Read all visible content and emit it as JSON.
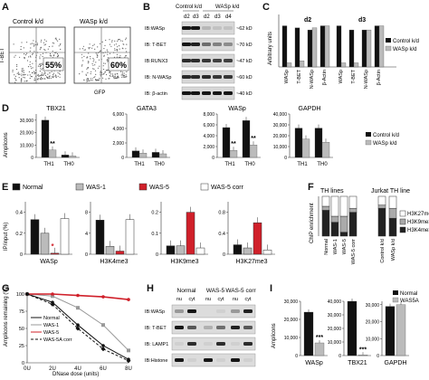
{
  "panels": {
    "A": {
      "letter": "A",
      "plots": [
        {
          "label": "Control k/d",
          "percent": "55%"
        },
        {
          "label": "WASp k/d",
          "percent": "60%"
        }
      ],
      "xlabel": "GFP",
      "ylabel": "T-BET"
    },
    "B": {
      "letter": "B",
      "group_labels": [
        "Control k/d",
        "WASp k/d"
      ],
      "lanes": [
        "d2",
        "d3",
        "d2",
        "d3",
        "d4"
      ],
      "rows": [
        {
          "label": "IB:WASp",
          "kda": "~62 kD"
        },
        {
          "label": "IB: T-BET",
          "kda": "~70 kD"
        },
        {
          "label": "IB:RUNX3",
          "kda": "~47 kD"
        },
        {
          "label": "IB: N-WASp",
          "kda": "~60 kD"
        },
        {
          "label": "IB: β-actin",
          "kda": "~40 kD"
        }
      ]
    },
    "C": {
      "letter": "C",
      "ylabel": "Arbitrary units",
      "groups": [
        "d2",
        "d3"
      ],
      "categories": [
        "WASp",
        "T-BET",
        "N-WASp",
        "β-Actin"
      ],
      "legend": [
        "Control k/d",
        "WASp k/d"
      ]
    },
    "D": {
      "letter": "D",
      "ylabel": "Amplicons",
      "subplots": [
        {
          "title": "TBX21",
          "yticks": [
            "0",
            "10,000",
            "20,000",
            "30,000"
          ]
        },
        {
          "title": "GATA3",
          "yticks": [
            "0",
            "2,000",
            "4,000",
            "6,000"
          ]
        },
        {
          "title": "WASp",
          "yticks": [
            "0",
            "2,000",
            "4,000",
            "6,000",
            "8,000"
          ]
        },
        {
          "title": "GAPDH",
          "yticks": [
            "0",
            "10,000",
            "20,000",
            "30,000",
            "40,000"
          ]
        }
      ],
      "xticks": [
        "TH1",
        "TH0"
      ],
      "sig": "**",
      "legend": [
        "Control k/d",
        "WASp k/d"
      ]
    },
    "E": {
      "letter": "E",
      "ylabel": "IP/input (%)",
      "legend": [
        "Normal",
        "WAS-1",
        "WAS-5",
        "WAS-5 corr"
      ],
      "subplots": [
        {
          "title": "WASp",
          "yticks": [
            "0",
            "0.2",
            "0.4"
          ]
        },
        {
          "title": "H3K4me3",
          "yticks": [
            "0",
            "4",
            "8"
          ]
        },
        {
          "title": "H3K9me3",
          "yticks": [
            "0",
            "0.1",
            "0.2"
          ]
        },
        {
          "title": "H3K27me3",
          "yticks": [
            "0",
            "0.4",
            "0.8"
          ]
        }
      ],
      "sig": "*"
    },
    "F": {
      "letter": "F",
      "ylabel": "ChIP enrichment",
      "title1": "TH lines",
      "title2": "Jurkat TH line",
      "bars1": [
        "Normal",
        "WAS-1",
        "WAS-5",
        "WAS-5 corr"
      ],
      "bars2": [
        "Control k/d",
        "WASp k/d"
      ],
      "legend": [
        "H3K27me3",
        "H3K9me3",
        "H3K4me3"
      ]
    },
    "G": {
      "letter": "G",
      "ylabel": "Amplicons remaining (%)",
      "xlabel": "DNase dose (units)",
      "xticks": [
        "0U",
        "2U",
        "4U",
        "6U",
        "8U"
      ],
      "yticks": [
        "0",
        "25",
        "50",
        "75",
        "100"
      ],
      "legend": [
        "Normal",
        "WAS-1",
        "WAS-5",
        "WAS-5A corr"
      ]
    },
    "H": {
      "letter": "H",
      "groups": [
        "Normal",
        "WAS-5",
        "WAS-5 corr"
      ],
      "lanes": [
        "nu",
        "cyt",
        "nu",
        "cyt",
        "nu",
        "cyt"
      ],
      "rows": [
        "IB:WASp",
        "IB: T-BET",
        "IB: LAMP1",
        "IB:Histone"
      ]
    },
    "I": {
      "letter": "I",
      "ylabel": "Amplicons",
      "subplots": [
        {
          "xlabel": "WASp",
          "yticks": [
            "0",
            "10,000",
            "20,000",
            "30,000"
          ]
        },
        {
          "xlabel": "TBX21",
          "yticks": [
            "0",
            "10,000",
            "20,000",
            "30,000",
            "40,000"
          ]
        },
        {
          "xlabel": "GAPDH",
          "yticks": [
            "0",
            "10,000",
            "20,000",
            "30,000"
          ]
        }
      ],
      "sig": "***",
      "legend": [
        "Normal",
        "WAS5A"
      ]
    }
  },
  "chart_data": [
    {
      "panel": "C",
      "type": "bar",
      "categories": [
        "WASp",
        "T-BET",
        "N-WASp",
        "β-Actin"
      ],
      "series": [
        {
          "name": "Control k/d",
          "group": "d2",
          "values": [
            1.0,
            0.95,
            0.9,
            1.0
          ]
        },
        {
          "name": "WASp k/d",
          "group": "d2",
          "values": [
            0.1,
            0.15,
            0.95,
            1.0
          ]
        },
        {
          "name": "Control k/d",
          "group": "d3",
          "values": [
            1.0,
            0.9,
            0.9,
            1.0
          ]
        },
        {
          "name": "WASp k/d",
          "group": "d3",
          "values": [
            0.1,
            0.1,
            0.9,
            1.0
          ]
        }
      ]
    },
    {
      "panel": "D",
      "type": "bar",
      "subplot": "TBX21",
      "categories": [
        "TH1",
        "TH0"
      ],
      "series": [
        {
          "name": "Control k/d",
          "values": [
            30000,
            2000
          ]
        },
        {
          "name": "WASp k/d",
          "values": [
            6000,
            1200
          ]
        }
      ],
      "ylim": [
        0,
        35000
      ]
    },
    {
      "panel": "D",
      "type": "bar",
      "subplot": "GATA3",
      "categories": [
        "TH1",
        "TH0"
      ],
      "series": [
        {
          "name": "Control k/d",
          "values": [
            900,
            700
          ]
        },
        {
          "name": "WASp k/d",
          "values": [
            600,
            500
          ]
        }
      ],
      "ylim": [
        0,
        6000
      ]
    },
    {
      "panel": "D",
      "type": "bar",
      "subplot": "WASp",
      "categories": [
        "TH1",
        "TH0"
      ],
      "series": [
        {
          "name": "Control k/d",
          "values": [
            5500,
            6800
          ]
        },
        {
          "name": "WASp k/d",
          "values": [
            1300,
            2300
          ]
        }
      ],
      "ylim": [
        0,
        8000
      ]
    },
    {
      "panel": "D",
      "type": "bar",
      "subplot": "GAPDH",
      "categories": [
        "TH1",
        "TH0"
      ],
      "series": [
        {
          "name": "Control k/d",
          "values": [
            27000,
            27000
          ]
        },
        {
          "name": "WASp k/d",
          "values": [
            17000,
            14000
          ]
        }
      ],
      "ylim": [
        0,
        40000
      ]
    },
    {
      "panel": "E",
      "type": "bar",
      "subplot": "WASp",
      "series": [
        {
          "name": "Normal",
          "values": [
            0.33
          ]
        },
        {
          "name": "WAS-1",
          "values": [
            0.2
          ]
        },
        {
          "name": "WAS-5",
          "values": [
            0.01
          ]
        },
        {
          "name": "WAS-5 corr",
          "values": [
            0.34
          ]
        }
      ],
      "ylim": [
        0,
        0.5
      ]
    },
    {
      "panel": "E",
      "type": "bar",
      "subplot": "H3K4me3",
      "series": [
        {
          "name": "Normal",
          "values": [
            6.5
          ]
        },
        {
          "name": "WAS-1",
          "values": [
            1.5
          ]
        },
        {
          "name": "WAS-5",
          "values": [
            0.6
          ]
        },
        {
          "name": "WAS-5 corr",
          "values": [
            6.6
          ]
        }
      ],
      "ylim": [
        0,
        10
      ]
    },
    {
      "panel": "E",
      "type": "bar",
      "subplot": "H3K9me3",
      "series": [
        {
          "name": "Normal",
          "values": [
            0.04
          ]
        },
        {
          "name": "WAS-1",
          "values": [
            0.04
          ]
        },
        {
          "name": "WAS-5",
          "values": [
            0.2
          ]
        },
        {
          "name": "WAS-5 corr",
          "values": [
            0.03
          ]
        }
      ],
      "ylim": [
        0,
        0.25
      ]
    },
    {
      "panel": "E",
      "type": "bar",
      "subplot": "H3K27me3",
      "series": [
        {
          "name": "Normal",
          "values": [
            0.18
          ]
        },
        {
          "name": "WAS-1",
          "values": [
            0.12
          ]
        },
        {
          "name": "WAS-5",
          "values": [
            0.6
          ]
        },
        {
          "name": "WAS-5 corr",
          "values": [
            0.08
          ]
        }
      ],
      "ylim": [
        0,
        1.0
      ]
    },
    {
      "panel": "F",
      "type": "bar",
      "stacked": true,
      "categories": [
        "Normal",
        "WAS-1",
        "WAS-5",
        "WAS-5 corr",
        "Control k/d",
        "WASp k/d"
      ],
      "series": [
        {
          "name": "H3K4me3",
          "values": [
            0.65,
            0.35,
            0.1,
            0.6,
            0.7,
            0.45
          ]
        },
        {
          "name": "H3K9me3",
          "values": [
            0.1,
            0.15,
            0.4,
            0.1,
            0.08,
            0.25
          ]
        },
        {
          "name": "H3K27me3",
          "values": [
            0.25,
            0.5,
            0.5,
            0.3,
            0.22,
            0.3
          ]
        }
      ],
      "ylim": [
        0,
        1
      ]
    },
    {
      "panel": "G",
      "type": "line",
      "x": [
        0,
        2,
        4,
        6,
        8
      ],
      "series": [
        {
          "name": "Normal",
          "values": [
            100,
            88,
            55,
            25,
            5
          ]
        },
        {
          "name": "WAS-1",
          "values": [
            100,
            97,
            80,
            55,
            18
          ]
        },
        {
          "name": "WAS-5",
          "values": [
            100,
            100,
            98,
            96,
            92
          ]
        },
        {
          "name": "WAS-5A corr",
          "values": [
            100,
            85,
            50,
            20,
            3
          ]
        }
      ],
      "ylim": [
        0,
        100
      ]
    },
    {
      "panel": "I",
      "type": "bar",
      "subplot": "WASp",
      "series": [
        {
          "name": "Normal",
          "values": [
            24000
          ]
        },
        {
          "name": "WAS5A",
          "values": [
            7000
          ]
        }
      ],
      "ylim": [
        0,
        30000
      ]
    },
    {
      "panel": "I",
      "type": "bar",
      "subplot": "TBX21",
      "series": [
        {
          "name": "Normal",
          "values": [
            40000
          ]
        },
        {
          "name": "WAS5A",
          "values": [
            500
          ]
        }
      ],
      "ylim": [
        0,
        40000
      ]
    },
    {
      "panel": "I",
      "type": "bar",
      "subplot": "GAPDH",
      "series": [
        {
          "name": "Normal",
          "values": [
            29000
          ]
        },
        {
          "name": "WAS5A",
          "values": [
            30000
          ]
        }
      ],
      "ylim": [
        0,
        32000
      ]
    }
  ]
}
